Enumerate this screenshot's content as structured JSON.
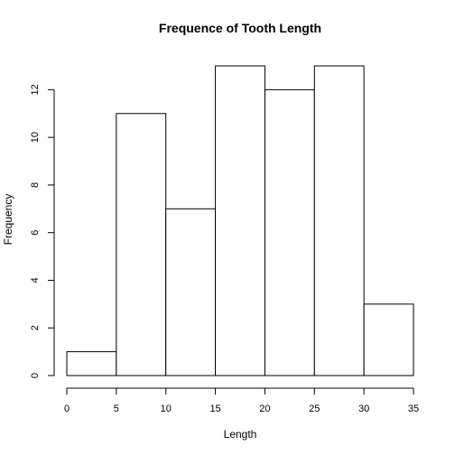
{
  "chart_data": {
    "type": "bar",
    "title": "Frequence of Tooth Length",
    "xlabel": "Length",
    "ylabel": "Frequency",
    "bins": [
      {
        "from": 0,
        "to": 5,
        "count": 1
      },
      {
        "from": 5,
        "to": 10,
        "count": 11
      },
      {
        "from": 10,
        "to": 15,
        "count": 7
      },
      {
        "from": 15,
        "to": 20,
        "count": 13
      },
      {
        "from": 20,
        "to": 25,
        "count": 12
      },
      {
        "from": 25,
        "to": 30,
        "count": 13
      },
      {
        "from": 30,
        "to": 35,
        "count": 3
      }
    ],
    "xlim": [
      0,
      35
    ],
    "ylim": [
      0,
      13
    ],
    "x_ticks": [
      "0",
      "5",
      "10",
      "15",
      "20",
      "25",
      "30",
      "35"
    ],
    "y_ticks": [
      "0",
      "2",
      "4",
      "6",
      "8",
      "10",
      "12"
    ],
    "grid": false,
    "legend": "none",
    "bar_color": "#ffffff",
    "edge_color": "#000000"
  }
}
